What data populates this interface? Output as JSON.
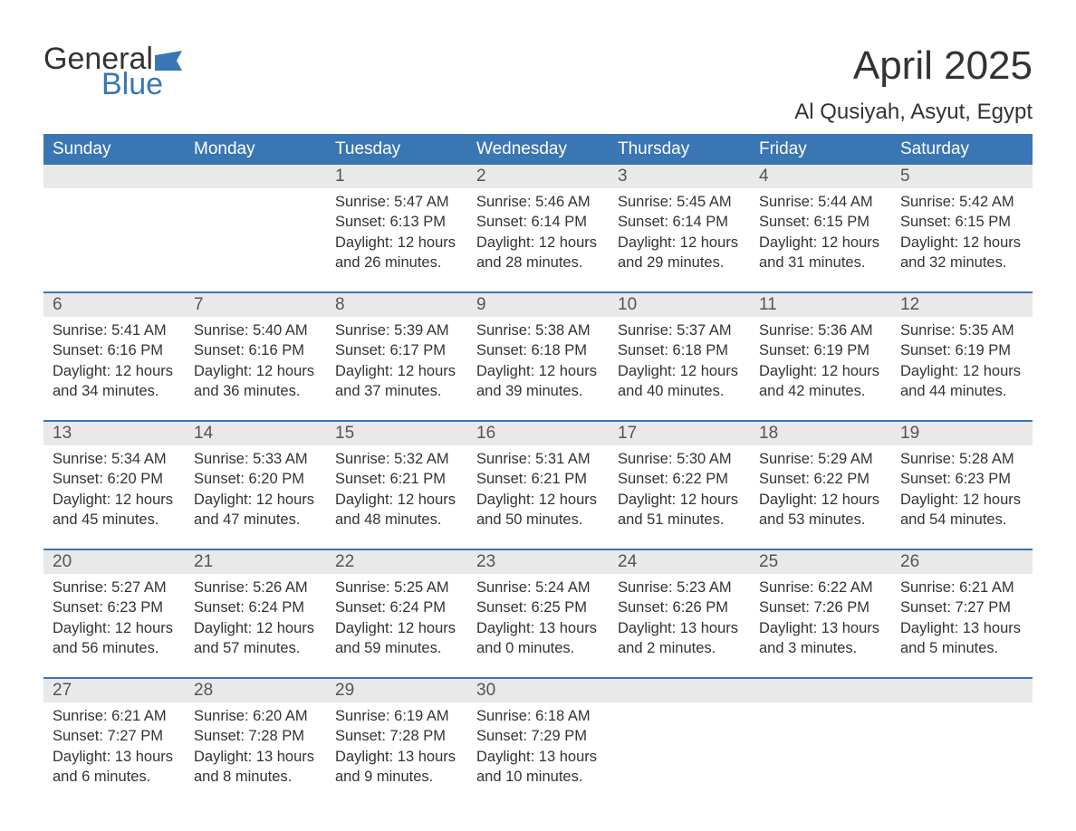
{
  "logo": {
    "word1": "General",
    "word2": "Blue",
    "flag_color": "#3a76b3"
  },
  "title": "April 2025",
  "location": "Al Qusiyah, Asyut, Egypt",
  "colors": {
    "header_bg": "#3a76b3",
    "header_text": "#ffffff",
    "daynum_bg": "#e9e9e9",
    "text": "#333333",
    "week_border": "#3a76b3",
    "background": "#ffffff"
  },
  "typography": {
    "title_fontsize": 44,
    "location_fontsize": 24,
    "weekday_fontsize": 19,
    "daynum_fontsize": 19,
    "body_fontsize": 16.5,
    "font_family": "Arial"
  },
  "layout": {
    "columns": 7,
    "rows": 5,
    "leading_blanks": 2,
    "trailing_blanks": 3
  },
  "weekdays": [
    "Sunday",
    "Monday",
    "Tuesday",
    "Wednesday",
    "Thursday",
    "Friday",
    "Saturday"
  ],
  "days": [
    {
      "n": 1,
      "sr": "5:47 AM",
      "ss": "6:13 PM",
      "dl": "12 hours and 26 minutes."
    },
    {
      "n": 2,
      "sr": "5:46 AM",
      "ss": "6:14 PM",
      "dl": "12 hours and 28 minutes."
    },
    {
      "n": 3,
      "sr": "5:45 AM",
      "ss": "6:14 PM",
      "dl": "12 hours and 29 minutes."
    },
    {
      "n": 4,
      "sr": "5:44 AM",
      "ss": "6:15 PM",
      "dl": "12 hours and 31 minutes."
    },
    {
      "n": 5,
      "sr": "5:42 AM",
      "ss": "6:15 PM",
      "dl": "12 hours and 32 minutes."
    },
    {
      "n": 6,
      "sr": "5:41 AM",
      "ss": "6:16 PM",
      "dl": "12 hours and 34 minutes."
    },
    {
      "n": 7,
      "sr": "5:40 AM",
      "ss": "6:16 PM",
      "dl": "12 hours and 36 minutes."
    },
    {
      "n": 8,
      "sr": "5:39 AM",
      "ss": "6:17 PM",
      "dl": "12 hours and 37 minutes."
    },
    {
      "n": 9,
      "sr": "5:38 AM",
      "ss": "6:18 PM",
      "dl": "12 hours and 39 minutes."
    },
    {
      "n": 10,
      "sr": "5:37 AM",
      "ss": "6:18 PM",
      "dl": "12 hours and 40 minutes."
    },
    {
      "n": 11,
      "sr": "5:36 AM",
      "ss": "6:19 PM",
      "dl": "12 hours and 42 minutes."
    },
    {
      "n": 12,
      "sr": "5:35 AM",
      "ss": "6:19 PM",
      "dl": "12 hours and 44 minutes."
    },
    {
      "n": 13,
      "sr": "5:34 AM",
      "ss": "6:20 PM",
      "dl": "12 hours and 45 minutes."
    },
    {
      "n": 14,
      "sr": "5:33 AM",
      "ss": "6:20 PM",
      "dl": "12 hours and 47 minutes."
    },
    {
      "n": 15,
      "sr": "5:32 AM",
      "ss": "6:21 PM",
      "dl": "12 hours and 48 minutes."
    },
    {
      "n": 16,
      "sr": "5:31 AM",
      "ss": "6:21 PM",
      "dl": "12 hours and 50 minutes."
    },
    {
      "n": 17,
      "sr": "5:30 AM",
      "ss": "6:22 PM",
      "dl": "12 hours and 51 minutes."
    },
    {
      "n": 18,
      "sr": "5:29 AM",
      "ss": "6:22 PM",
      "dl": "12 hours and 53 minutes."
    },
    {
      "n": 19,
      "sr": "5:28 AM",
      "ss": "6:23 PM",
      "dl": "12 hours and 54 minutes."
    },
    {
      "n": 20,
      "sr": "5:27 AM",
      "ss": "6:23 PM",
      "dl": "12 hours and 56 minutes."
    },
    {
      "n": 21,
      "sr": "5:26 AM",
      "ss": "6:24 PM",
      "dl": "12 hours and 57 minutes."
    },
    {
      "n": 22,
      "sr": "5:25 AM",
      "ss": "6:24 PM",
      "dl": "12 hours and 59 minutes."
    },
    {
      "n": 23,
      "sr": "5:24 AM",
      "ss": "6:25 PM",
      "dl": "13 hours and 0 minutes."
    },
    {
      "n": 24,
      "sr": "5:23 AM",
      "ss": "6:26 PM",
      "dl": "13 hours and 2 minutes."
    },
    {
      "n": 25,
      "sr": "6:22 AM",
      "ss": "7:26 PM",
      "dl": "13 hours and 3 minutes."
    },
    {
      "n": 26,
      "sr": "6:21 AM",
      "ss": "7:27 PM",
      "dl": "13 hours and 5 minutes."
    },
    {
      "n": 27,
      "sr": "6:21 AM",
      "ss": "7:27 PM",
      "dl": "13 hours and 6 minutes."
    },
    {
      "n": 28,
      "sr": "6:20 AM",
      "ss": "7:28 PM",
      "dl": "13 hours and 8 minutes."
    },
    {
      "n": 29,
      "sr": "6:19 AM",
      "ss": "7:28 PM",
      "dl": "13 hours and 9 minutes."
    },
    {
      "n": 30,
      "sr": "6:18 AM",
      "ss": "7:29 PM",
      "dl": "13 hours and 10 minutes."
    }
  ],
  "labels": {
    "sunrise": "Sunrise:",
    "sunset": "Sunset:",
    "daylight": "Daylight:"
  }
}
